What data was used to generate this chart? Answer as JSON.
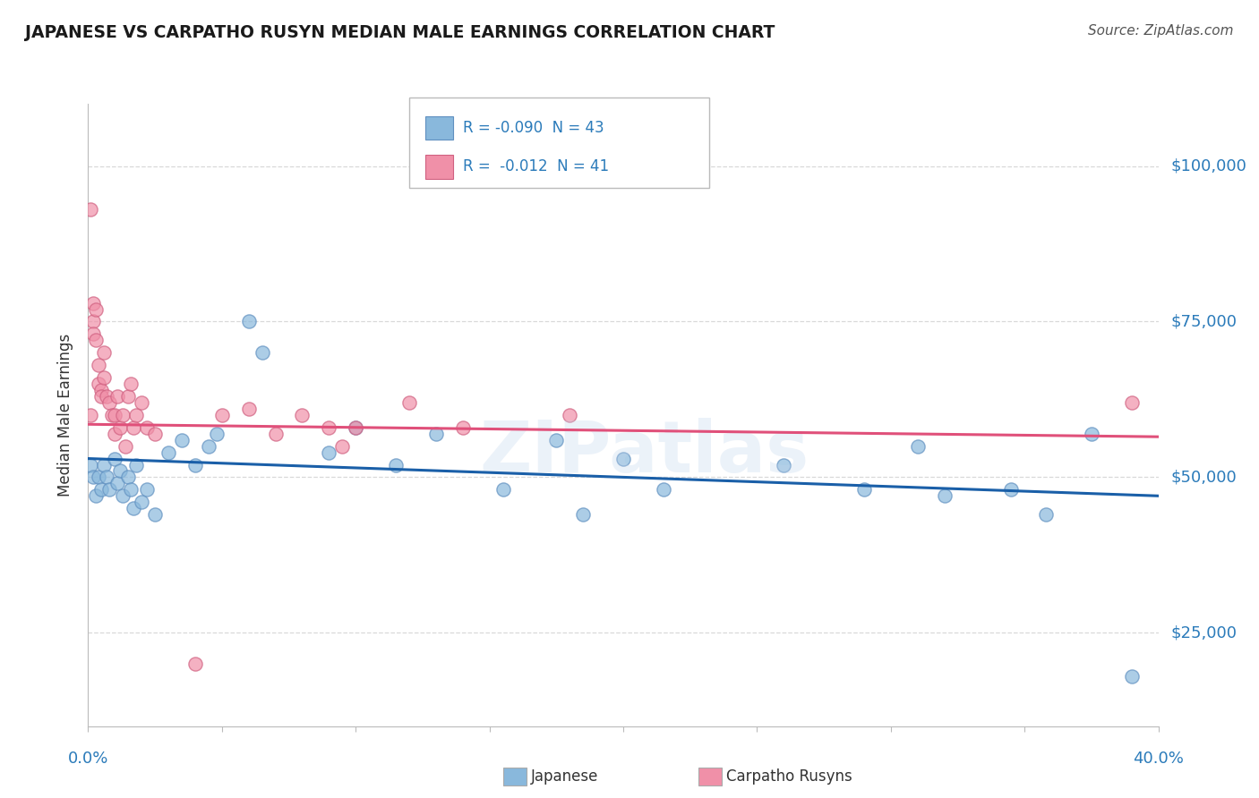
{
  "title": "JAPANESE VS CARPATHO RUSYN MEDIAN MALE EARNINGS CORRELATION CHART",
  "source": "Source: ZipAtlas.com",
  "ylabel": "Median Male Earnings",
  "ytick_labels": [
    "$25,000",
    "$50,000",
    "$75,000",
    "$100,000"
  ],
  "ytick_values": [
    25000,
    50000,
    75000,
    100000
  ],
  "xlim": [
    0.0,
    0.4
  ],
  "ylim": [
    10000,
    110000
  ],
  "legend_entries": [
    {
      "label": "R = -0.090  N = 43",
      "color": "#a8c8e8"
    },
    {
      "label": "R =  -0.012  N = 41",
      "color": "#f4a0b8"
    }
  ],
  "bottom_legend": [
    {
      "label": "Japanese",
      "color": "#a8c8e8"
    },
    {
      "label": "Carpatho Rusyns",
      "color": "#f4a0b8"
    }
  ],
  "japanese_x": [
    0.001,
    0.002,
    0.003,
    0.004,
    0.005,
    0.006,
    0.007,
    0.008,
    0.01,
    0.011,
    0.012,
    0.013,
    0.015,
    0.016,
    0.017,
    0.018,
    0.02,
    0.022,
    0.025,
    0.03,
    0.035,
    0.04,
    0.045,
    0.048,
    0.06,
    0.065,
    0.09,
    0.1,
    0.115,
    0.13,
    0.155,
    0.175,
    0.185,
    0.2,
    0.215,
    0.26,
    0.29,
    0.31,
    0.32,
    0.345,
    0.358,
    0.375,
    0.39
  ],
  "japanese_y": [
    52000,
    50000,
    47000,
    50000,
    48000,
    52000,
    50000,
    48000,
    53000,
    49000,
    51000,
    47000,
    50000,
    48000,
    45000,
    52000,
    46000,
    48000,
    44000,
    54000,
    56000,
    52000,
    55000,
    57000,
    75000,
    70000,
    54000,
    58000,
    52000,
    57000,
    48000,
    56000,
    44000,
    53000,
    48000,
    52000,
    48000,
    55000,
    47000,
    48000,
    44000,
    57000,
    18000
  ],
  "rusyn_x": [
    0.001,
    0.001,
    0.002,
    0.002,
    0.002,
    0.003,
    0.003,
    0.004,
    0.004,
    0.005,
    0.005,
    0.006,
    0.006,
    0.007,
    0.008,
    0.009,
    0.01,
    0.01,
    0.011,
    0.012,
    0.013,
    0.014,
    0.015,
    0.016,
    0.017,
    0.018,
    0.02,
    0.022,
    0.025,
    0.04,
    0.05,
    0.06,
    0.07,
    0.08,
    0.09,
    0.095,
    0.1,
    0.12,
    0.14,
    0.18,
    0.39
  ],
  "rusyn_y": [
    93000,
    60000,
    75000,
    73000,
    78000,
    77000,
    72000,
    68000,
    65000,
    64000,
    63000,
    70000,
    66000,
    63000,
    62000,
    60000,
    60000,
    57000,
    63000,
    58000,
    60000,
    55000,
    63000,
    65000,
    58000,
    60000,
    62000,
    58000,
    57000,
    20000,
    60000,
    61000,
    57000,
    60000,
    58000,
    55000,
    58000,
    62000,
    58000,
    60000,
    62000
  ],
  "japanese_line_x": [
    0.0,
    0.4
  ],
  "japanese_line_y": [
    53000,
    47000
  ],
  "rusyn_line_x": [
    0.0,
    0.4
  ],
  "rusyn_line_y": [
    58500,
    56500
  ],
  "title_color": "#1a1a1a",
  "japanese_color": "#89b8dc",
  "rusyn_color": "#f090a8",
  "japanese_line_color": "#1a5fa8",
  "rusyn_line_color": "#e0507a",
  "axis_color": "#2b7bba",
  "watermark": "ZIPatlas",
  "background_color": "#ffffff",
  "grid_color": "#d0d0d0"
}
